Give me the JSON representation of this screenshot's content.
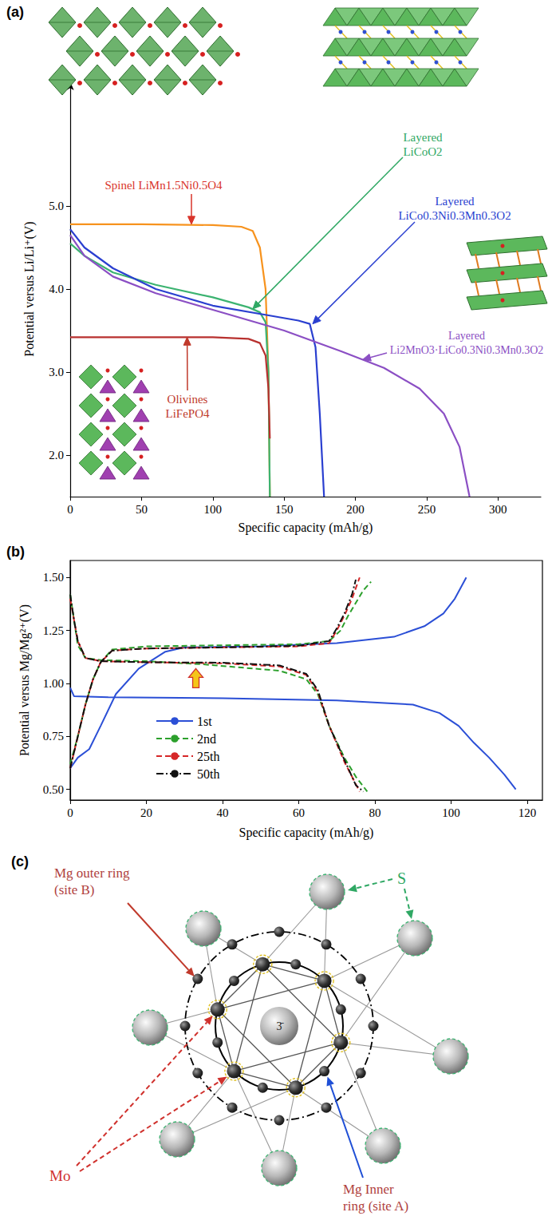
{
  "chart_data": [
    {
      "panel_label": "(a)",
      "type": "line",
      "x_label": "Specific capacity (mAh/g)",
      "y_label": "Potential versus Li/Li⁺(V)",
      "xlim": [
        0,
        330
      ],
      "xticks": [
        0,
        50,
        100,
        150,
        200,
        250,
        300
      ],
      "ylim": [
        1.5,
        6.5
      ],
      "yticks": [
        {
          "value": 2,
          "label": "2.0"
        },
        {
          "value": 3,
          "label": "3.0"
        },
        {
          "value": 4,
          "label": "4.0"
        },
        {
          "value": 5,
          "label": "5.0"
        }
      ],
      "grid": false,
      "series": [
        {
          "name": "Spinel LiMn1.5Ni0.5O4",
          "color": "#f7931e",
          "line_style": "solid",
          "x": [
            0,
            50,
            100,
            120,
            128,
            133,
            137,
            139,
            140
          ],
          "values": [
            4.78,
            4.78,
            4.77,
            4.75,
            4.7,
            4.5,
            4.0,
            3.0,
            1.5
          ],
          "annotation": {
            "x": 85,
            "y": 4.78,
            "color": "#d9342b"
          }
        },
        {
          "name": "Layered\nLiCoO2",
          "color": "#3cb371",
          "line_style": "solid",
          "x": [
            0,
            10,
            30,
            60,
            100,
            125,
            133,
            137,
            139,
            140
          ],
          "values": [
            4.55,
            4.4,
            4.2,
            4.05,
            3.9,
            3.78,
            3.72,
            3.6,
            3.0,
            1.5
          ],
          "annotation": {
            "x": 128,
            "y": 3.76,
            "color": "#2fa864"
          }
        },
        {
          "name": "Layered\nLiCo0.3Ni0.3Mn0.3O2",
          "color": "#2a3fd0",
          "line_style": "solid",
          "x": [
            0,
            10,
            30,
            60,
            100,
            140,
            160,
            168,
            172,
            175,
            178
          ],
          "values": [
            4.72,
            4.5,
            4.25,
            4.0,
            3.8,
            3.68,
            3.62,
            3.58,
            3.3,
            2.5,
            1.5
          ],
          "annotation": {
            "x": 170,
            "y": 3.58,
            "color": "#2a3fd0"
          }
        },
        {
          "name": "Layered\nLi2MnO3·LiCo0.3Ni0.3Mn0.3O2",
          "color": "#8b4fc4",
          "line_style": "solid",
          "x": [
            0,
            10,
            30,
            60,
            100,
            150,
            190,
            220,
            245,
            262,
            273,
            280
          ],
          "values": [
            4.65,
            4.4,
            4.15,
            3.95,
            3.75,
            3.5,
            3.25,
            3.05,
            2.8,
            2.5,
            2.1,
            1.5
          ],
          "annotation": {
            "x": 205,
            "y": 3.15,
            "color": "#8b4fc4"
          }
        },
        {
          "name": "Olivines\nLiFePO4",
          "color": "#b8312f",
          "line_style": "solid",
          "x": [
            0,
            50,
            100,
            125,
            133,
            137,
            139,
            140
          ],
          "values": [
            3.42,
            3.42,
            3.42,
            3.4,
            3.35,
            3.2,
            2.8,
            2.2
          ],
          "annotation": {
            "x": 82,
            "y": 3.42,
            "color": "#c0392b"
          }
        }
      ]
    },
    {
      "panel_label": "(b)",
      "type": "line",
      "x_label": "Specific capacity (mAh/g)",
      "y_label": "Potential versus Mg/Mg²⁺(V)",
      "xlim": [
        0,
        124
      ],
      "xticks": [
        0,
        20,
        40,
        60,
        80,
        100,
        120
      ],
      "ylim": [
        0.45,
        1.58
      ],
      "yticks": [
        {
          "value": 0.5,
          "label": "0.50"
        },
        {
          "value": 0.75,
          "label": "0.75"
        },
        {
          "value": 1.0,
          "label": "1.00"
        },
        {
          "value": 1.25,
          "label": "1.25"
        },
        {
          "value": 1.5,
          "label": "1.50"
        }
      ],
      "grid": false,
      "legend": "left",
      "annotations": [
        {
          "x": 33,
          "y": 1.07,
          "y_tail": 0.98,
          "color": "#f5c518"
        }
      ],
      "series": [
        {
          "name": "1st",
          "color": "#2b4fd6",
          "line_style": "solid",
          "x": [
            0,
            1,
            10,
            40,
            70,
            90,
            97,
            102,
            106,
            110,
            114,
            117,
            null,
            0,
            2,
            5,
            8,
            12,
            18,
            25,
            30,
            50,
            70,
            85,
            93,
            98,
            101,
            104
          ],
          "values": [
            0.98,
            0.94,
            0.935,
            0.93,
            0.92,
            0.9,
            0.86,
            0.8,
            0.72,
            0.65,
            0.57,
            0.5,
            null,
            0.6,
            0.65,
            0.69,
            0.8,
            0.95,
            1.07,
            1.15,
            1.17,
            1.175,
            1.19,
            1.22,
            1.27,
            1.33,
            1.4,
            1.5
          ]
        },
        {
          "name": "2nd",
          "color": "#2ca02c",
          "line_style": "dashed",
          "x": [
            0,
            1,
            2,
            4,
            8,
            20,
            35,
            45,
            55,
            62,
            65,
            68,
            72,
            75,
            78,
            null,
            0,
            2,
            4,
            6,
            8,
            11,
            20,
            40,
            60,
            68,
            71,
            73,
            75,
            77,
            79
          ],
          "values": [
            1.42,
            1.3,
            1.18,
            1.12,
            1.11,
            1.105,
            1.09,
            1.075,
            1.06,
            1.02,
            0.95,
            0.8,
            0.65,
            0.56,
            0.49,
            null,
            0.62,
            0.75,
            0.9,
            1.02,
            1.1,
            1.16,
            1.175,
            1.18,
            1.185,
            1.2,
            1.25,
            1.32,
            1.38,
            1.44,
            1.48
          ]
        },
        {
          "name": "25th",
          "color": "#d62728",
          "line_style": "dashed",
          "x": [
            0,
            1,
            2,
            4,
            8,
            20,
            40,
            55,
            62,
            65,
            68,
            72,
            76,
            null,
            0,
            2,
            4,
            6,
            8,
            11,
            20,
            40,
            60,
            68,
            70,
            72,
            74,
            76
          ],
          "values": [
            1.4,
            1.3,
            1.2,
            1.12,
            1.105,
            1.1,
            1.095,
            1.08,
            1.04,
            0.96,
            0.8,
            0.63,
            0.49,
            null,
            0.6,
            0.75,
            0.9,
            1.02,
            1.1,
            1.155,
            1.165,
            1.17,
            1.175,
            1.19,
            1.25,
            1.32,
            1.4,
            1.5
          ]
        },
        {
          "name": "50th",
          "color": "#111111",
          "line_style": "dashdot",
          "x": [
            0,
            1,
            2,
            4,
            8,
            20,
            40,
            55,
            62,
            65,
            68,
            72,
            75,
            77,
            null,
            0,
            2,
            4,
            6,
            8,
            11,
            20,
            40,
            60,
            68,
            70,
            72,
            74,
            75
          ],
          "values": [
            1.42,
            1.3,
            1.2,
            1.12,
            1.105,
            1.1,
            1.098,
            1.085,
            1.045,
            0.97,
            0.8,
            0.64,
            0.52,
            0.49,
            null,
            0.6,
            0.75,
            0.9,
            1.02,
            1.1,
            1.155,
            1.165,
            1.17,
            1.178,
            1.2,
            1.26,
            1.33,
            1.42,
            1.49
          ]
        }
      ]
    }
  ],
  "diagram": {
    "panel_label": "(c)",
    "labels": {
      "outer_ring": "Mg outer ring\n(site B)",
      "sulfur": "S",
      "molybdenum": "Mo",
      "inner_ring": "Mg Inner\nring (site A)",
      "symmetry": "3̄"
    }
  }
}
